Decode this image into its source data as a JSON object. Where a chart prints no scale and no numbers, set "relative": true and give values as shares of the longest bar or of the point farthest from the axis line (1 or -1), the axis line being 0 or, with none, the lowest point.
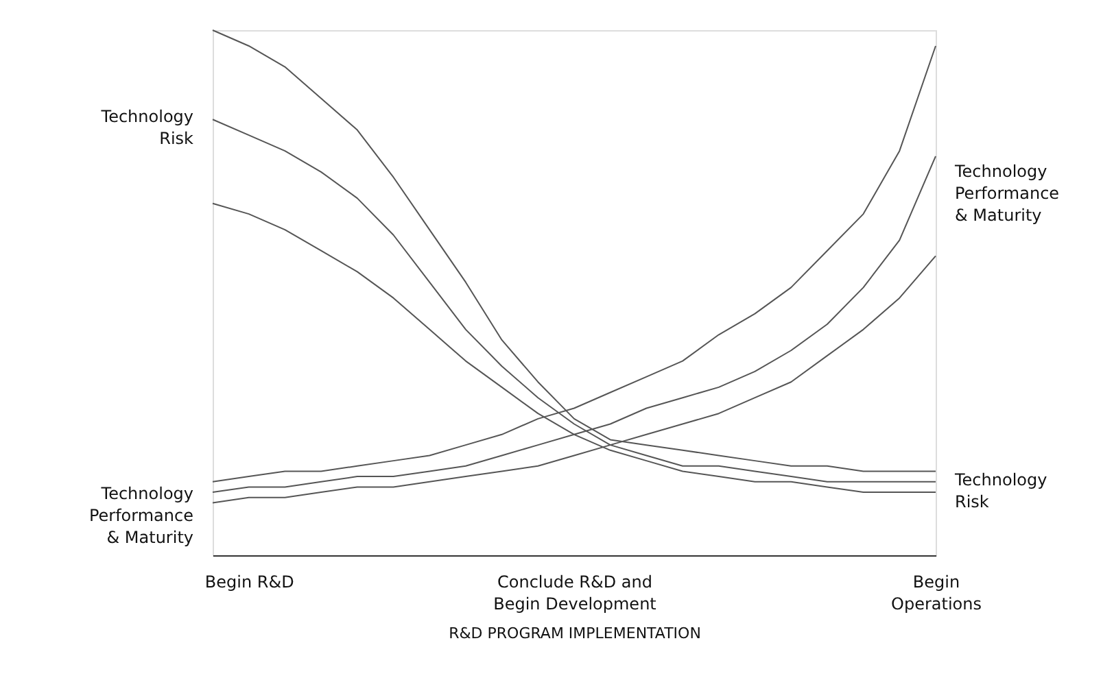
{
  "chart_data": {
    "type": "line",
    "relative": true,
    "xlabel": "R&D PROGRAM IMPLEMENTATION",
    "categories": [
      null,
      "Begin R&D",
      null,
      null,
      null,
      null,
      null,
      null,
      null,
      null,
      "Conclude R&D and\nBegin Development",
      null,
      null,
      null,
      null,
      null,
      null,
      null,
      null,
      null,
      "Begin\nOperations"
    ],
    "series": [
      {
        "color": "#555555",
        "values": [
          1.0,
          0.97,
          0.93,
          0.87,
          0.81,
          0.72,
          0.62,
          0.52,
          0.41,
          0.33,
          0.26,
          0.22,
          0.21,
          0.2,
          0.19,
          0.18,
          0.17,
          0.17,
          0.16,
          0.16,
          0.16
        ]
      },
      {
        "color": "#555555",
        "values": [
          0.83,
          0.8,
          0.77,
          0.73,
          0.68,
          0.61,
          0.52,
          0.43,
          0.36,
          0.3,
          0.25,
          0.21,
          0.19,
          0.17,
          0.17,
          0.16,
          0.15,
          0.14,
          0.14,
          0.14,
          0.14
        ]
      },
      {
        "color": "#555555",
        "values": [
          0.67,
          0.65,
          0.62,
          0.58,
          0.54,
          0.49,
          0.43,
          0.37,
          0.32,
          0.27,
          0.23,
          0.2,
          0.18,
          0.16,
          0.15,
          0.14,
          0.14,
          0.13,
          0.12,
          0.12,
          0.12
        ]
      },
      {
        "color": "#555555",
        "values": [
          0.14,
          0.15,
          0.16,
          0.16,
          0.17,
          0.18,
          0.19,
          0.21,
          0.23,
          0.26,
          0.28,
          0.31,
          0.34,
          0.37,
          0.42,
          0.46,
          0.51,
          0.58,
          0.65,
          0.77,
          0.97
        ]
      },
      {
        "color": "#555555",
        "values": [
          0.12,
          0.13,
          0.13,
          0.14,
          0.15,
          0.15,
          0.16,
          0.17,
          0.19,
          0.21,
          0.23,
          0.25,
          0.28,
          0.3,
          0.32,
          0.35,
          0.39,
          0.44,
          0.51,
          0.6,
          0.76
        ]
      },
      {
        "color": "#555555",
        "values": [
          0.1,
          0.11,
          0.11,
          0.12,
          0.13,
          0.13,
          0.14,
          0.15,
          0.16,
          0.17,
          0.19,
          0.21,
          0.23,
          0.25,
          0.27,
          0.3,
          0.33,
          0.38,
          0.43,
          0.49,
          0.57
        ]
      }
    ],
    "annotations": [
      "Technology\nRisk",
      "Technology\nPerformance\n& Maturity",
      "Technology\nPerformance\n& Maturity",
      "Technology\nRisk"
    ]
  }
}
